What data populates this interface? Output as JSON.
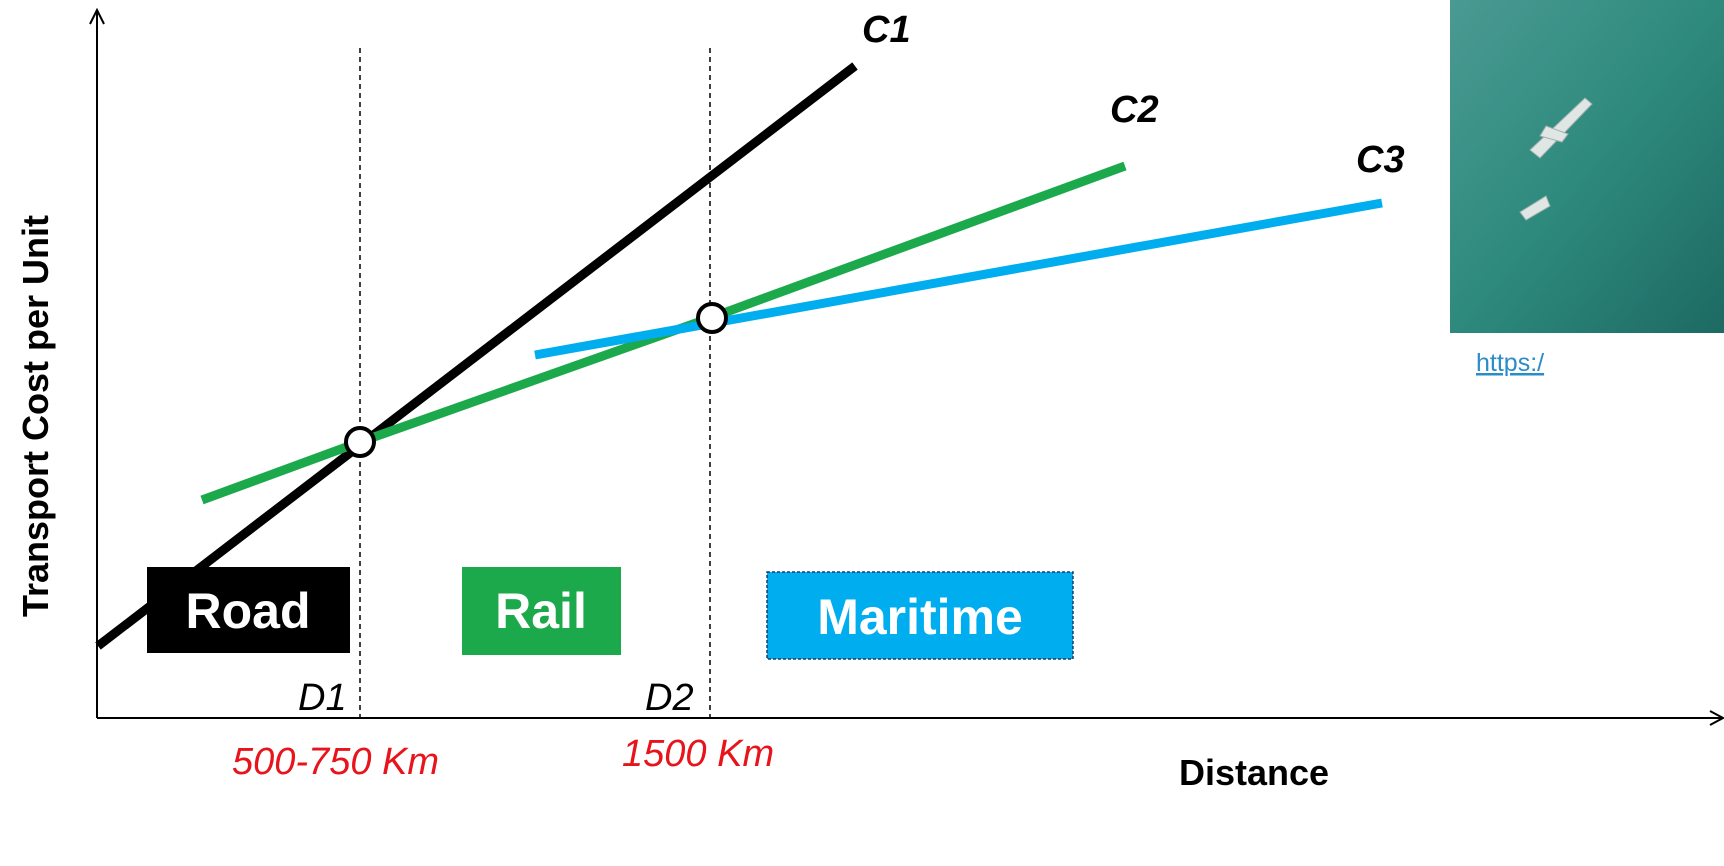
{
  "colors": {
    "road": "#000000",
    "rail": "#1ba94c",
    "maritime": "#00aeef",
    "highlight": "#e8141c",
    "link": "#2a8cc8",
    "photo": "#2e8a7d"
  },
  "axes": {
    "y_title": "Transport Cost per Unit",
    "x_title": "Distance"
  },
  "curves": [
    {
      "id": "road",
      "label": "C1"
    },
    {
      "id": "rail",
      "label": "C2"
    },
    {
      "id": "maritime",
      "label": "C3"
    }
  ],
  "modes": [
    {
      "id": "road",
      "label": "Road"
    },
    {
      "id": "rail",
      "label": "Rail"
    },
    {
      "id": "maritime",
      "label": "Maritime"
    }
  ],
  "thresholds": [
    {
      "label": "D1",
      "distance": "500-750 Km"
    },
    {
      "label": "D2",
      "distance": "1500 Km"
    }
  ],
  "photo": {
    "icon": "airplane-photo",
    "link_text": "https:/"
  }
}
